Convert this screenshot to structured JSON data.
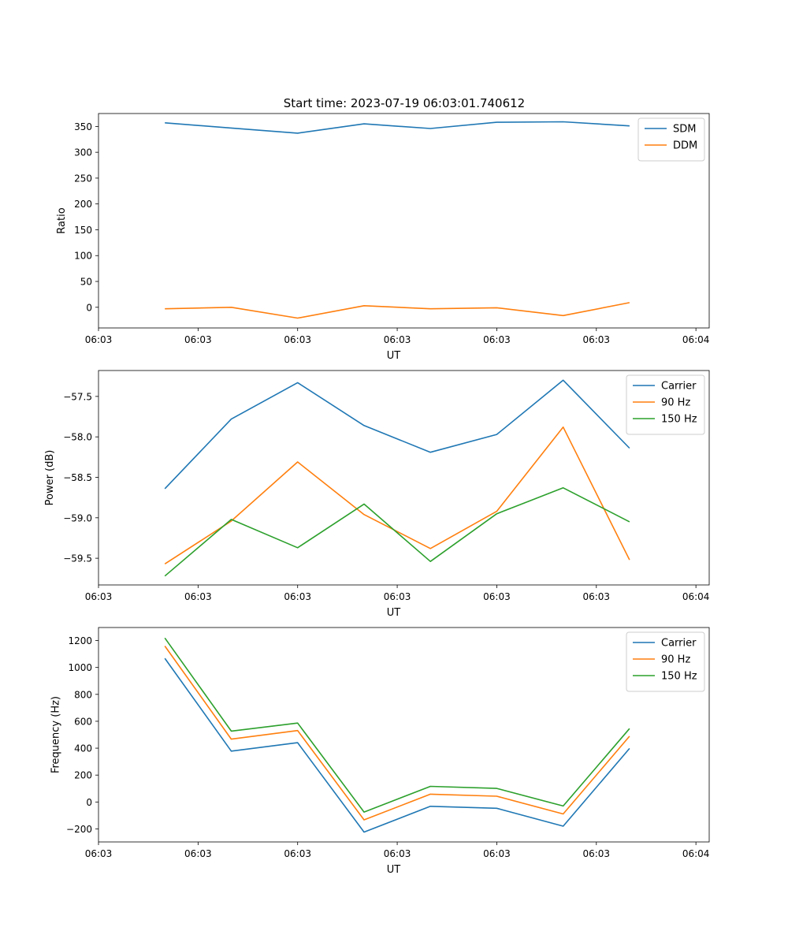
{
  "figure": {
    "title": "Start time: 2023-07-19 06:03:01.740612"
  },
  "chart_data": [
    {
      "type": "line",
      "xlabel": "UT",
      "ylabel": "Ratio",
      "xlim": [
        0,
        9.2
      ],
      "ylim": [
        -40,
        375
      ],
      "x": [
        1,
        2,
        3,
        4,
        5,
        6,
        7,
        8
      ],
      "x_ticks": [
        {
          "value": 0,
          "label": "06:03"
        },
        {
          "value": 1.5,
          "label": "06:03"
        },
        {
          "value": 3,
          "label": "06:03"
        },
        {
          "value": 4.5,
          "label": "06:03"
        },
        {
          "value": 6,
          "label": "06:03"
        },
        {
          "value": 7.5,
          "label": "06:03"
        },
        {
          "value": 9,
          "label": "06:04"
        }
      ],
      "y_ticks": [
        {
          "value": 350,
          "label": "350"
        },
        {
          "value": 300,
          "label": "300"
        },
        {
          "value": 250,
          "label": "250"
        },
        {
          "value": 200,
          "label": "200"
        },
        {
          "value": 150,
          "label": "150"
        },
        {
          "value": 100,
          "label": "100"
        },
        {
          "value": 50,
          "label": "50"
        },
        {
          "value": 0,
          "label": "0"
        }
      ],
      "legend_position": "top-right",
      "series": [
        {
          "name": "SDM",
          "color": "#1f77b4",
          "values": [
            357,
            347,
            337,
            355,
            346,
            358,
            359,
            351
          ]
        },
        {
          "name": "DDM",
          "color": "#ff7f0e",
          "values": [
            -3,
            0,
            -21,
            3,
            -3,
            -1,
            -16,
            9
          ]
        }
      ]
    },
    {
      "type": "line",
      "xlabel": "UT",
      "ylabel": "Power (dB)",
      "xlim": [
        0,
        9.2
      ],
      "ylim": [
        -59.83,
        -57.18
      ],
      "x": [
        1,
        2,
        3,
        4,
        5,
        6,
        7,
        8
      ],
      "x_ticks": [
        {
          "value": 0,
          "label": "06:03"
        },
        {
          "value": 1.5,
          "label": "06:03"
        },
        {
          "value": 3,
          "label": "06:03"
        },
        {
          "value": 4.5,
          "label": "06:03"
        },
        {
          "value": 6,
          "label": "06:03"
        },
        {
          "value": 7.5,
          "label": "06:03"
        },
        {
          "value": 9,
          "label": "06:04"
        }
      ],
      "y_ticks": [
        {
          "value": -57.5,
          "label": "−57.5"
        },
        {
          "value": -58.0,
          "label": "−58.0"
        },
        {
          "value": -58.5,
          "label": "−58.5"
        },
        {
          "value": -59.0,
          "label": "−59.0"
        },
        {
          "value": -59.5,
          "label": "−59.5"
        }
      ],
      "legend_position": "top-right",
      "series": [
        {
          "name": "Carrier",
          "color": "#1f77b4",
          "values": [
            -58.64,
            -57.78,
            -57.33,
            -57.86,
            -58.19,
            -57.97,
            -57.3,
            -58.14
          ]
        },
        {
          "name": "90 Hz",
          "color": "#ff7f0e",
          "values": [
            -59.57,
            -59.04,
            -58.31,
            -58.96,
            -59.38,
            -58.92,
            -57.88,
            -59.52
          ]
        },
        {
          "name": "150 Hz",
          "color": "#2ca02c",
          "values": [
            -59.72,
            -59.02,
            -59.37,
            -58.83,
            -59.54,
            -58.95,
            -58.63,
            -59.05
          ]
        }
      ]
    },
    {
      "type": "line",
      "xlabel": "UT",
      "ylabel": "Frequency (Hz)",
      "xlim": [
        0,
        9.2
      ],
      "ylim": [
        -297,
        1297
      ],
      "x": [
        1,
        2,
        3,
        4,
        5,
        6,
        7,
        8
      ],
      "x_ticks": [
        {
          "value": 0,
          "label": "06:03"
        },
        {
          "value": 1.5,
          "label": "06:03"
        },
        {
          "value": 3,
          "label": "06:03"
        },
        {
          "value": 4.5,
          "label": "06:03"
        },
        {
          "value": 6,
          "label": "06:03"
        },
        {
          "value": 7.5,
          "label": "06:03"
        },
        {
          "value": 9,
          "label": "06:04"
        }
      ],
      "y_ticks": [
        {
          "value": 1200,
          "label": "1200"
        },
        {
          "value": 1000,
          "label": "1000"
        },
        {
          "value": 800,
          "label": "800"
        },
        {
          "value": 600,
          "label": "600"
        },
        {
          "value": 400,
          "label": "400"
        },
        {
          "value": 200,
          "label": "200"
        },
        {
          "value": 0,
          "label": "0"
        },
        {
          "value": -200,
          "label": "−200"
        }
      ],
      "legend_position": "top-right",
      "series": [
        {
          "name": "Carrier",
          "color": "#1f77b4",
          "values": [
            1068,
            378,
            441,
            -224,
            -32,
            -47,
            -180,
            398
          ]
        },
        {
          "name": "90 Hz",
          "color": "#ff7f0e",
          "values": [
            1159,
            467,
            531,
            -133,
            58,
            43,
            -89,
            489
          ]
        },
        {
          "name": "150 Hz",
          "color": "#2ca02c",
          "values": [
            1219,
            527,
            587,
            -75,
            116,
            101,
            -30,
            546
          ]
        }
      ]
    }
  ]
}
